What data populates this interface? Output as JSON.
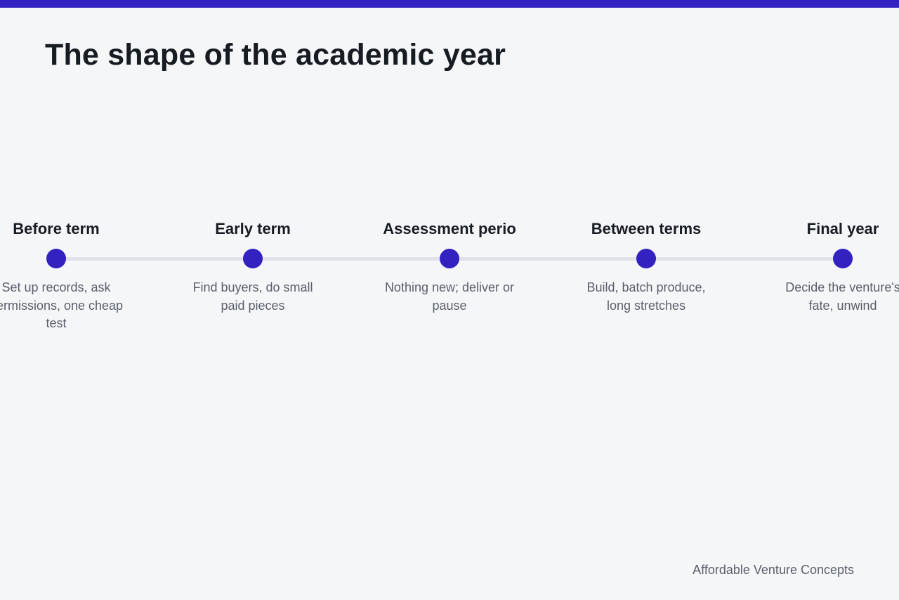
{
  "title": "The shape of the academic year",
  "accent_color": "#3321c0",
  "stages": [
    {
      "label": "Before term",
      "description": "Set up records, ask permissions, one cheap test"
    },
    {
      "label": "Early term",
      "description": "Find buyers, do small paid pieces"
    },
    {
      "label": "Assessment perio",
      "description": "Nothing new; deliver or pause"
    },
    {
      "label": "Between terms",
      "description": "Build, batch produce, long stretches"
    },
    {
      "label": "Final year",
      "description": "Decide the venture's fate, unwind"
    }
  ],
  "footer": "Affordable Venture Concepts"
}
